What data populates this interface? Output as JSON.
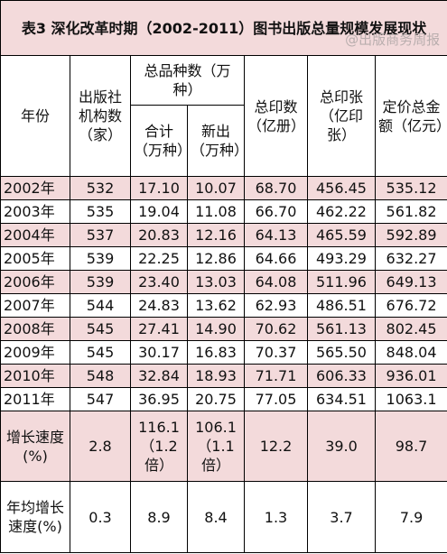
{
  "title": "表3 深化改革时期（2002-2011）图书出版总量规模发展现状",
  "watermark": "@出版商务周报",
  "header": {
    "year": "年份",
    "publishers": "出版社机构数（家）",
    "titles": "总品种数（万种）",
    "titles_total": "合计（万种）",
    "titles_new": "新出（万种）",
    "prints": "总印数（亿册）",
    "sheets": "总印张（亿印张）",
    "value": "定价总金额（亿元）"
  },
  "rows": [
    [
      "2002年",
      "532",
      "17.10",
      "10.07",
      "68.70",
      "456.45",
      "535.12"
    ],
    [
      "2003年",
      "535",
      "19.04",
      "11.08",
      "66.70",
      "462.22",
      "561.82"
    ],
    [
      "2004年",
      "537",
      "20.83",
      "12.16",
      "64.13",
      "465.59",
      "592.89"
    ],
    [
      "2005年",
      "539",
      "22.25",
      "12.86",
      "64.66",
      "493.29",
      "632.27"
    ],
    [
      "2006年",
      "539",
      "23.40",
      "13.03",
      "64.08",
      "511.96",
      "649.13"
    ],
    [
      "2007年",
      "544",
      "24.83",
      "13.62",
      "62.93",
      "486.51",
      "676.72"
    ],
    [
      "2008年",
      "545",
      "27.41",
      "14.90",
      "70.62",
      "561.13",
      "802.45"
    ],
    [
      "2009年",
      "545",
      "30.17",
      "16.83",
      "70.37",
      "565.50",
      "848.04"
    ],
    [
      "2010年",
      "548",
      "32.84",
      "18.93",
      "71.71",
      "606.33",
      "936.01"
    ],
    [
      "2011年",
      "547",
      "36.95",
      "20.75",
      "77.05",
      "634.51",
      "1063.1"
    ]
  ],
  "growth": [
    "增长速度(%)",
    "2.8",
    "116.1（1.2倍）",
    "106.1（1.1倍）",
    "12.2",
    "39.0",
    "98.7"
  ],
  "annual": [
    "年均增长速度(%)",
    "0.3",
    "8.9",
    "8.4",
    "1.3",
    "3.7",
    "7.9"
  ]
}
